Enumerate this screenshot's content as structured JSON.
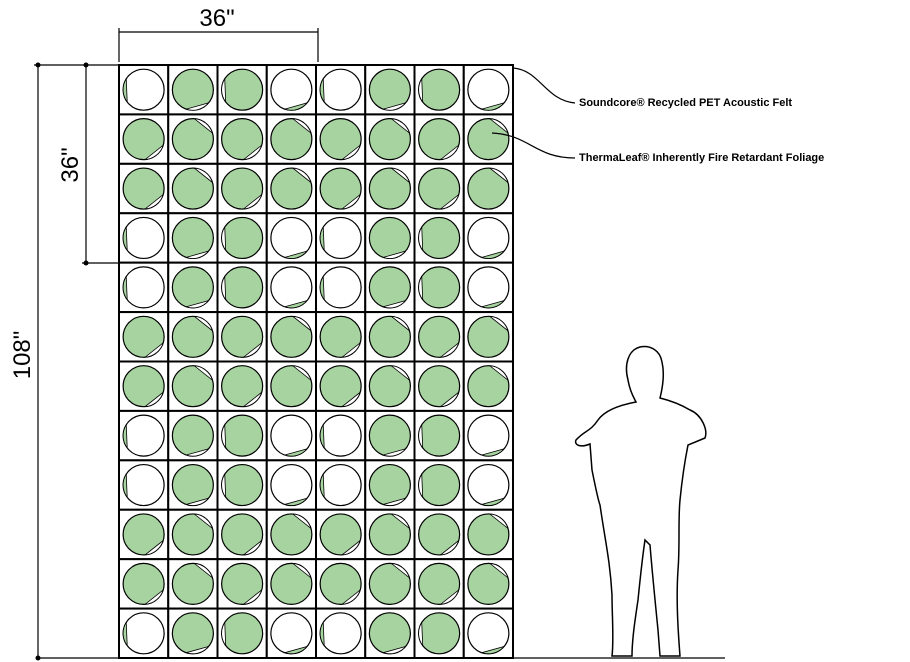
{
  "dimensions": {
    "width": "36\"",
    "module_height": "36\"",
    "height": "108\""
  },
  "callouts": [
    {
      "label": "Soundcore® Recycled PET Acoustic Felt"
    },
    {
      "label": "ThermaLeaf® Inherently Fire Retardant Foliage"
    }
  ]
}
